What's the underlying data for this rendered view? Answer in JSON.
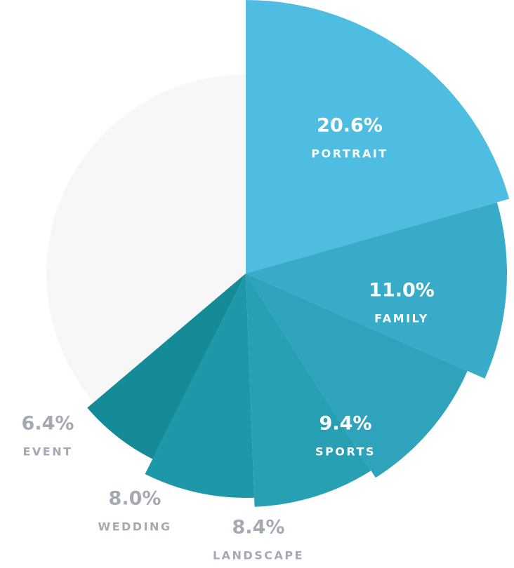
{
  "chart_data": {
    "type": "pie",
    "categories": [
      "PORTRAIT",
      "FAMILY",
      "SPORTS",
      "LANDSCAPE",
      "WEDDING",
      "EVENT"
    ],
    "values": [
      20.6,
      11.0,
      9.4,
      8.4,
      8.0,
      6.4
    ],
    "value_labels": [
      "20.6%",
      "11.0%",
      "9.4%",
      "8.4%",
      "8.0%",
      "6.4%"
    ],
    "colors": [
      "#4fbde2",
      "#37abc8",
      "#2fa3bb",
      "#27a0b3",
      "#1e98a8",
      "#148b96"
    ],
    "rest_color": "#f7f7f8"
  }
}
